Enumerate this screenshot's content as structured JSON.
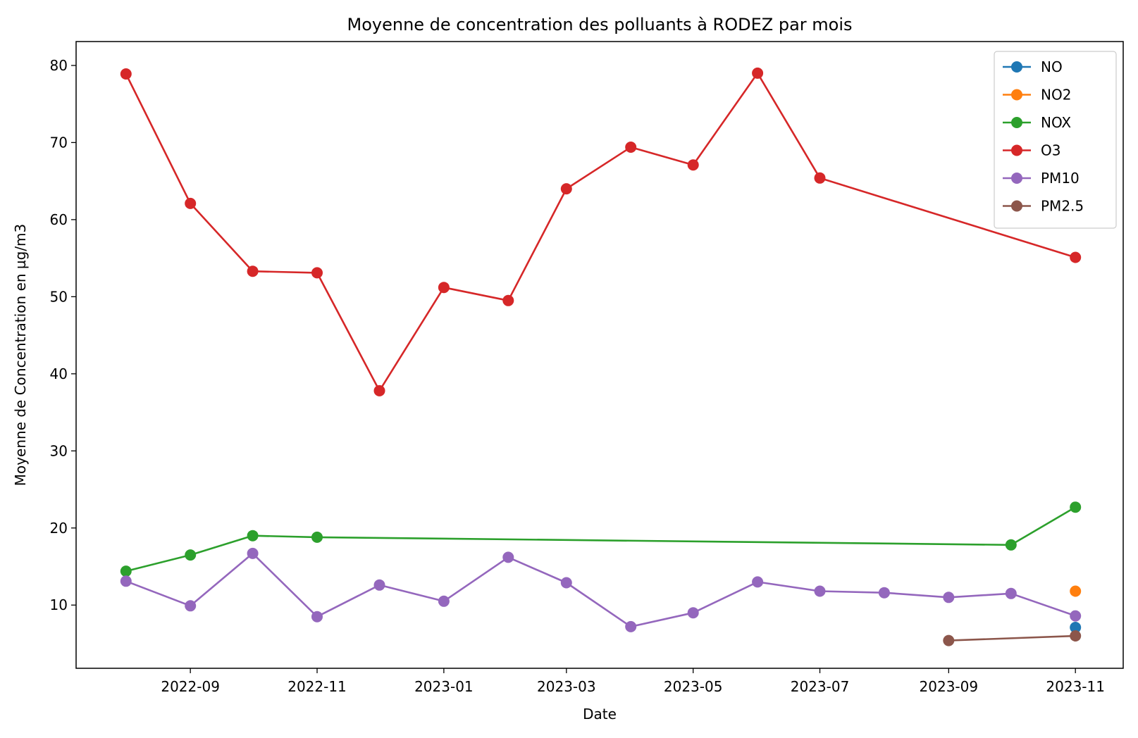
{
  "chart_data": {
    "type": "line",
    "title": "Moyenne de concentration des polluants à RODEZ par mois",
    "xlabel": "Date",
    "ylabel": "Moyenne de Concentration en µg/m3",
    "xlim": [
      "2022-07-08",
      "2023-11-24"
    ],
    "ylim": [
      1.8,
      83.1
    ],
    "yticks": [
      10,
      20,
      30,
      40,
      50,
      60,
      70,
      80
    ],
    "xticks": [
      "2022-09-01",
      "2022-11-01",
      "2023-01-01",
      "2023-03-01",
      "2023-05-01",
      "2023-07-01",
      "2023-09-01",
      "2023-11-01"
    ],
    "xtick_labels": [
      "2022-09",
      "2022-11",
      "2023-01",
      "2023-03",
      "2023-05",
      "2023-07",
      "2023-09",
      "2023-11"
    ],
    "grid": false,
    "legend": "top-right",
    "series": [
      {
        "name": "NO",
        "color": "#1f77b4",
        "x": [
          "2023-11-01"
        ],
        "y": [
          7.1
        ]
      },
      {
        "name": "NO2",
        "color": "#ff7f0e",
        "x": [
          "2023-11-01"
        ],
        "y": [
          11.8
        ]
      },
      {
        "name": "NOX",
        "color": "#2ca02c",
        "x": [
          "2022-08-01",
          "2022-09-01",
          "2022-10-01",
          "2022-11-01",
          "2023-10-01",
          "2023-11-01"
        ],
        "y": [
          14.4,
          16.5,
          19.0,
          18.8,
          17.8,
          22.7
        ]
      },
      {
        "name": "O3",
        "color": "#d62728",
        "x": [
          "2022-08-01",
          "2022-09-01",
          "2022-10-01",
          "2022-11-01",
          "2022-12-01",
          "2023-01-01",
          "2023-02-01",
          "2023-03-01",
          "2023-04-01",
          "2023-05-01",
          "2023-06-01",
          "2023-07-01",
          "2023-11-01"
        ],
        "y": [
          78.9,
          62.1,
          53.3,
          53.1,
          37.8,
          51.2,
          49.5,
          64.0,
          69.4,
          67.1,
          79.0,
          65.4,
          55.1
        ]
      },
      {
        "name": "PM10",
        "color": "#9467bd",
        "x": [
          "2022-08-01",
          "2022-09-01",
          "2022-10-01",
          "2022-11-01",
          "2022-12-01",
          "2023-01-01",
          "2023-02-01",
          "2023-03-01",
          "2023-04-01",
          "2023-05-01",
          "2023-06-01",
          "2023-07-01",
          "2023-08-01",
          "2023-09-01",
          "2023-10-01",
          "2023-11-01"
        ],
        "y": [
          13.1,
          9.9,
          16.7,
          8.5,
          12.6,
          10.5,
          16.2,
          12.9,
          7.2,
          9.0,
          13.0,
          11.8,
          11.6,
          11.0,
          11.5,
          8.6
        ]
      },
      {
        "name": "PM2.5",
        "color": "#8c564b",
        "x": [
          "2023-09-01",
          "2023-11-01"
        ],
        "y": [
          5.4,
          6.0
        ]
      }
    ]
  }
}
